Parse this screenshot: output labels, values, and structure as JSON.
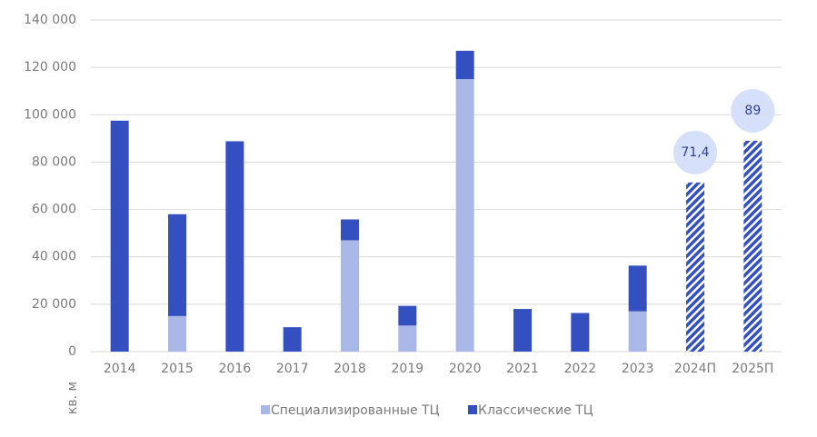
{
  "chart_data": {
    "type": "stacked_bar",
    "y_label": "кв. м",
    "categories": [
      "2014",
      "2015",
      "2016",
      "2017",
      "2018",
      "2019",
      "2020",
      "2021",
      "2022",
      "2023",
      "2024П",
      "2025П"
    ],
    "series": [
      {
        "name": "Специализированные ТЦ",
        "color": "#aab8e8",
        "values": [
          0,
          15000,
          0,
          0,
          47000,
          11000,
          115000,
          0,
          0,
          17000,
          null,
          null
        ]
      },
      {
        "name": "Классические ТЦ",
        "color": "#3450c0",
        "values": [
          97500,
          43000,
          88800,
          10300,
          8800,
          8300,
          12000,
          18000,
          16300,
          19300,
          71400,
          89000
        ],
        "hatched": [
          false,
          false,
          false,
          false,
          false,
          false,
          false,
          false,
          false,
          false,
          true,
          true
        ],
        "value_labels": [
          null,
          null,
          null,
          null,
          null,
          null,
          null,
          null,
          null,
          null,
          "71,4",
          "89"
        ]
      }
    ],
    "ylim": [
      0,
      140000
    ],
    "yticks": [
      0,
      {
        "value": 20000,
        "label": "20 000"
      },
      {
        "value": 40000,
        "label": "40 000"
      },
      {
        "value": 60000,
        "label": "60 000"
      },
      {
        "value": 80000,
        "label": "80 000"
      },
      {
        "value": 100000,
        "label": "100 000"
      },
      {
        "value": 120000,
        "label": "120 000"
      },
      {
        "value": 140000,
        "label": "140 000"
      }
    ],
    "grid": true,
    "legend": "bottom"
  }
}
